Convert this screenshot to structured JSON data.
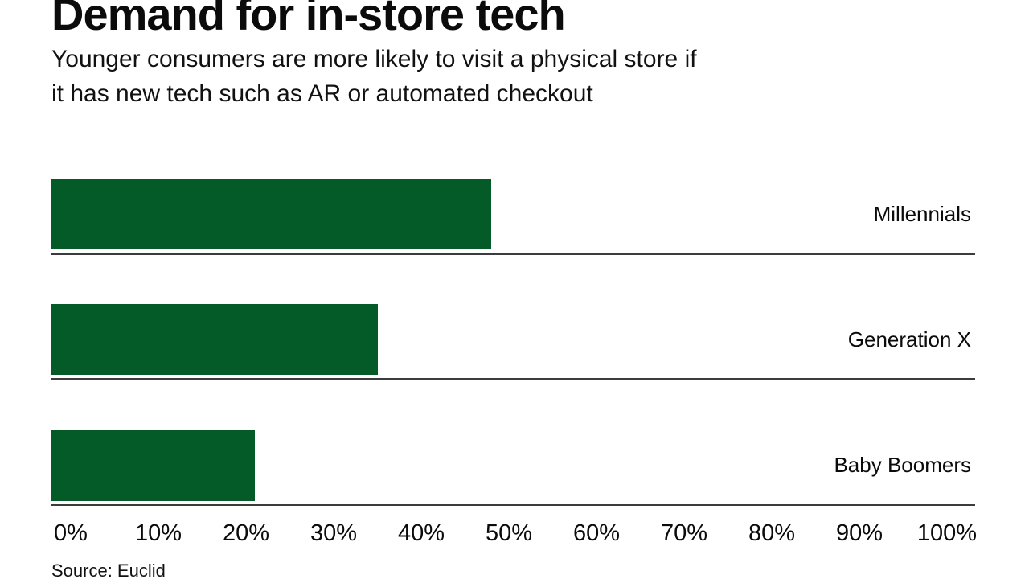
{
  "header": {
    "title": "Demand for in-store tech",
    "subtitle_line1": "Younger consumers are more likely to visit a physical store if",
    "subtitle_line2": "it has new tech such as AR or automated checkout"
  },
  "footer": {
    "source": "Source: Euclid"
  },
  "colors": {
    "bar_fill": "#055B27",
    "divider": "#3c3c3c",
    "text": "#0b0b0b"
  },
  "chart_data": {
    "type": "bar",
    "orientation": "horizontal",
    "title": "Demand for in-store tech",
    "subtitle": "Younger consumers are more likely to visit a physical store if it has new tech such as AR or automated checkout",
    "categories": [
      "Millennials",
      "Generation X",
      "Baby Boomers"
    ],
    "values": [
      48,
      35,
      21
    ],
    "unit": "%",
    "xlim": [
      0,
      100
    ],
    "x_tick_labels": [
      "0%",
      "10%",
      "20%",
      "30%",
      "40%",
      "50%",
      "60%",
      "70%",
      "80%",
      "90%",
      "100%"
    ],
    "grid": false,
    "legend": false,
    "category_label_position": "right",
    "source": "Source: Euclid"
  }
}
